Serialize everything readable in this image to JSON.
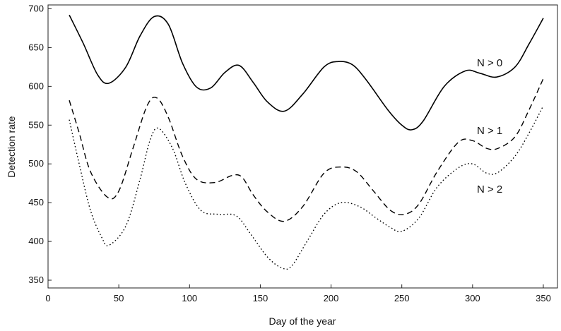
{
  "chart_data": {
    "type": "line",
    "title": "",
    "xlabel": "Day of the year",
    "ylabel": "Detection rate",
    "xlim": [
      0,
      360
    ],
    "ylim": [
      340,
      705
    ],
    "x_ticks": [
      0,
      50,
      100,
      150,
      200,
      250,
      300,
      350
    ],
    "y_ticks": [
      350,
      400,
      450,
      500,
      550,
      600,
      650,
      700
    ],
    "grid": false,
    "legend": "none",
    "series": [
      {
        "name": "N > 0",
        "style": "solid",
        "color": "#000000",
        "points": [
          [
            15,
            692
          ],
          [
            25,
            655
          ],
          [
            35,
            615
          ],
          [
            43,
            604
          ],
          [
            55,
            625
          ],
          [
            65,
            665
          ],
          [
            75,
            690
          ],
          [
            85,
            680
          ],
          [
            95,
            630
          ],
          [
            105,
            599
          ],
          [
            115,
            598
          ],
          [
            125,
            618
          ],
          [
            135,
            627
          ],
          [
            145,
            605
          ],
          [
            155,
            580
          ],
          [
            167,
            568
          ],
          [
            180,
            590
          ],
          [
            195,
            625
          ],
          [
            205,
            632
          ],
          [
            215,
            628
          ],
          [
            225,
            608
          ],
          [
            240,
            570
          ],
          [
            250,
            550
          ],
          [
            257,
            544
          ],
          [
            265,
            555
          ],
          [
            280,
            600
          ],
          [
            295,
            620
          ],
          [
            305,
            617
          ],
          [
            317,
            612
          ],
          [
            330,
            625
          ],
          [
            340,
            655
          ],
          [
            350,
            688
          ]
        ]
      },
      {
        "name": "N > 1",
        "style": "dashed",
        "color": "#000000",
        "points": [
          [
            15,
            582
          ],
          [
            22,
            540
          ],
          [
            30,
            490
          ],
          [
            42,
            457
          ],
          [
            50,
            465
          ],
          [
            60,
            520
          ],
          [
            70,
            575
          ],
          [
            77,
            585
          ],
          [
            85,
            560
          ],
          [
            95,
            510
          ],
          [
            105,
            480
          ],
          [
            118,
            476
          ],
          [
            130,
            485
          ],
          [
            137,
            483
          ],
          [
            145,
            460
          ],
          [
            155,
            438
          ],
          [
            167,
            426
          ],
          [
            180,
            445
          ],
          [
            195,
            488
          ],
          [
            207,
            496
          ],
          [
            218,
            490
          ],
          [
            230,
            465
          ],
          [
            242,
            440
          ],
          [
            252,
            435
          ],
          [
            262,
            448
          ],
          [
            275,
            490
          ],
          [
            290,
            528
          ],
          [
            300,
            530
          ],
          [
            310,
            520
          ],
          [
            318,
            520
          ],
          [
            330,
            535
          ],
          [
            340,
            570
          ],
          [
            350,
            610
          ]
        ]
      },
      {
        "name": "N > 2",
        "style": "dotted",
        "color": "#000000",
        "points": [
          [
            15,
            557
          ],
          [
            22,
            500
          ],
          [
            30,
            440
          ],
          [
            38,
            405
          ],
          [
            43,
            395
          ],
          [
            55,
            420
          ],
          [
            65,
            480
          ],
          [
            72,
            530
          ],
          [
            78,
            546
          ],
          [
            88,
            520
          ],
          [
            97,
            475
          ],
          [
            108,
            440
          ],
          [
            120,
            435
          ],
          [
            133,
            433
          ],
          [
            143,
            410
          ],
          [
            155,
            380
          ],
          [
            165,
            366
          ],
          [
            172,
            368
          ],
          [
            183,
            400
          ],
          [
            195,
            435
          ],
          [
            207,
            450
          ],
          [
            220,
            445
          ],
          [
            232,
            430
          ],
          [
            242,
            418
          ],
          [
            250,
            413
          ],
          [
            262,
            430
          ],
          [
            275,
            470
          ],
          [
            290,
            495
          ],
          [
            300,
            500
          ],
          [
            310,
            488
          ],
          [
            318,
            489
          ],
          [
            330,
            510
          ],
          [
            340,
            540
          ],
          [
            350,
            575
          ]
        ]
      }
    ],
    "annotations": [
      "N > 0",
      "N > 1",
      "N > 2"
    ]
  }
}
